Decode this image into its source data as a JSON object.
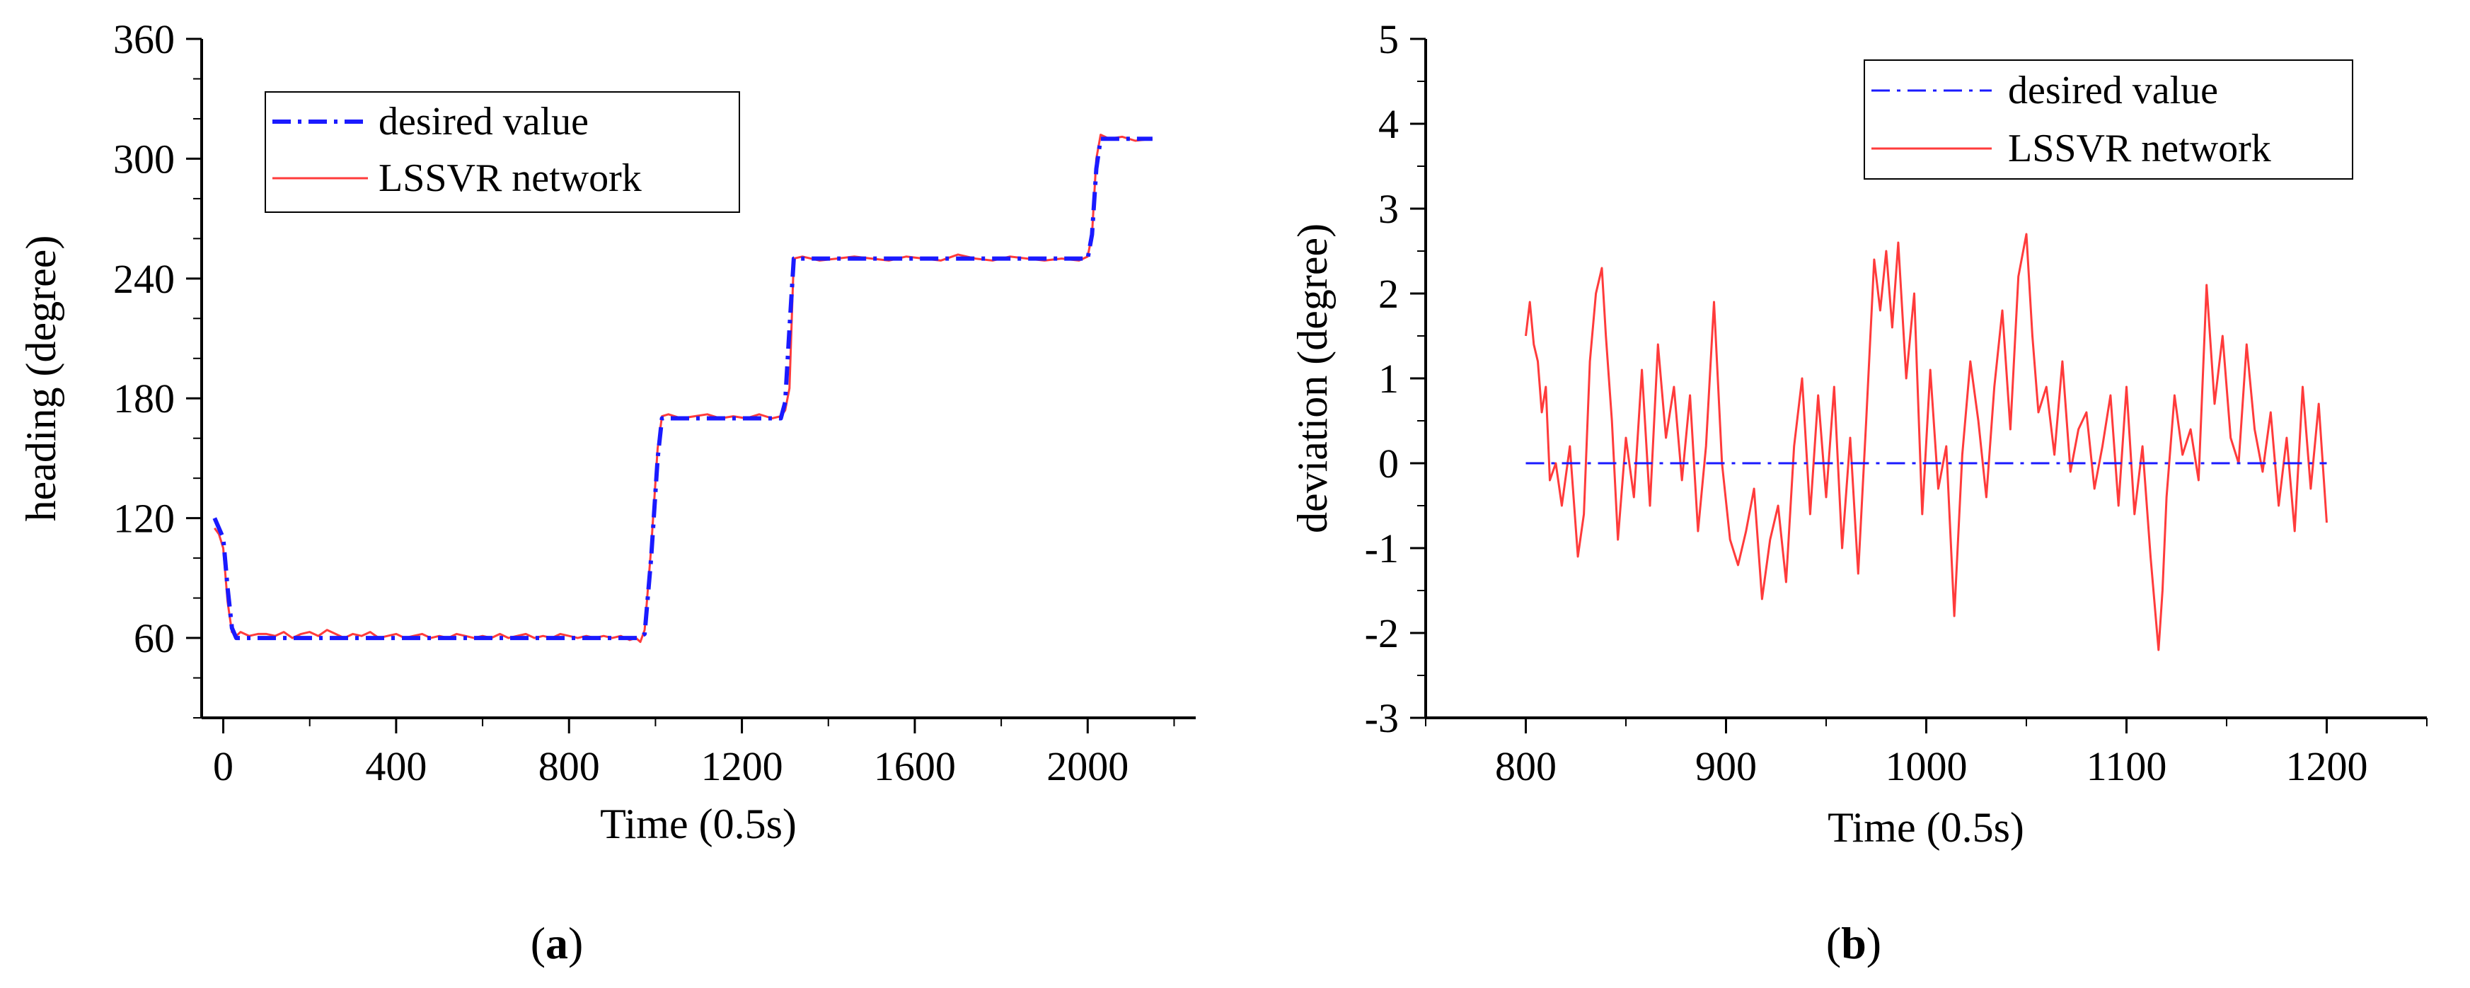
{
  "chart_data": [
    {
      "type": "line",
      "panel": "a",
      "xlabel": "Time (0.5s)",
      "ylabel": "heading (degree)",
      "xlim": [
        -50,
        2250
      ],
      "ylim": [
        20,
        360
      ],
      "xticks": [
        0,
        400,
        800,
        1200,
        1600,
        2000
      ],
      "yticks": [
        60,
        120,
        180,
        240,
        300,
        360
      ],
      "legend_position": "top-left",
      "series": [
        {
          "name": "desired value",
          "color": "#1a1aff",
          "style": "dash-dot",
          "x": [
            -20,
            0,
            10,
            20,
            30,
            960,
            975,
            990,
            1005,
            1015,
            1290,
            1300,
            1310,
            1320,
            2000,
            2010,
            2020,
            2030,
            2150
          ],
          "y": [
            120,
            110,
            85,
            65,
            60,
            60,
            62,
            100,
            150,
            170,
            170,
            178,
            215,
            250,
            250,
            262,
            295,
            310,
            310
          ]
        },
        {
          "name": "LSSVR network",
          "color": "#ff3b3b",
          "style": "solid",
          "x": [
            -20,
            -10,
            0,
            10,
            20,
            30,
            40,
            60,
            80,
            100,
            120,
            140,
            160,
            180,
            200,
            220,
            240,
            260,
            280,
            300,
            320,
            340,
            360,
            380,
            400,
            420,
            440,
            460,
            480,
            500,
            520,
            540,
            560,
            580,
            600,
            620,
            640,
            660,
            680,
            700,
            720,
            740,
            760,
            780,
            800,
            820,
            840,
            860,
            880,
            900,
            920,
            940,
            955,
            965,
            975,
            990,
            1005,
            1015,
            1030,
            1060,
            1090,
            1120,
            1150,
            1180,
            1210,
            1240,
            1270,
            1290,
            1300,
            1310,
            1320,
            1340,
            1380,
            1420,
            1460,
            1500,
            1540,
            1580,
            1620,
            1660,
            1700,
            1740,
            1780,
            1820,
            1860,
            1900,
            1940,
            1980,
            2000,
            2010,
            2020,
            2030,
            2050,
            2080,
            2110,
            2150
          ],
          "y": [
            115,
            112,
            105,
            78,
            63,
            61,
            63,
            61,
            62,
            62,
            61,
            63,
            60,
            62,
            63,
            61,
            64,
            62,
            60,
            62,
            61,
            63,
            60,
            61,
            62,
            60,
            61,
            62,
            60,
            61,
            60,
            62,
            61,
            60,
            61,
            60,
            62,
            60,
            61,
            62,
            60,
            61,
            60,
            62,
            61,
            60,
            61,
            60,
            61,
            60,
            61,
            59,
            60,
            58,
            64,
            105,
            155,
            171,
            172,
            170,
            171,
            172,
            170,
            171,
            170,
            172,
            170,
            171,
            174,
            185,
            250,
            251,
            249,
            250,
            251,
            250,
            249,
            251,
            250,
            249,
            252,
            250,
            249,
            251,
            250,
            249,
            250,
            249,
            251,
            262,
            300,
            312,
            310,
            311,
            309,
            310
          ]
        }
      ]
    },
    {
      "type": "line",
      "panel": "b",
      "xlabel": "Time (0.5s)",
      "ylabel": "deviation (degree)",
      "xlim": [
        750,
        1250
      ],
      "ylim": [
        -3,
        5
      ],
      "xticks": [
        800,
        900,
        1000,
        1100,
        1200
      ],
      "yticks": [
        -3,
        -2,
        -1,
        0,
        1,
        2,
        3,
        4,
        5
      ],
      "legend_position": "top-right",
      "series": [
        {
          "name": "desired value",
          "color": "#1a1aff",
          "style": "dash-dot",
          "x": [
            800,
            1200
          ],
          "y": [
            0,
            0
          ]
        },
        {
          "name": "LSSVR network",
          "color": "#ff3b3b",
          "style": "solid",
          "x": [
            800,
            802,
            804,
            806,
            808,
            810,
            812,
            815,
            818,
            822,
            826,
            829,
            832,
            835,
            838,
            840,
            843,
            846,
            850,
            854,
            858,
            862,
            866,
            870,
            874,
            878,
            882,
            886,
            890,
            894,
            898,
            902,
            906,
            910,
            914,
            918,
            922,
            926,
            930,
            934,
            938,
            942,
            946,
            950,
            954,
            958,
            962,
            966,
            970,
            974,
            977,
            980,
            983,
            986,
            990,
            994,
            998,
            1002,
            1006,
            1010,
            1014,
            1018,
            1022,
            1026,
            1030,
            1034,
            1038,
            1042,
            1046,
            1050,
            1053,
            1056,
            1060,
            1064,
            1068,
            1072,
            1076,
            1080,
            1084,
            1088,
            1092,
            1096,
            1100,
            1104,
            1108,
            1112,
            1116,
            1118,
            1120,
            1124,
            1128,
            1132,
            1136,
            1140,
            1144,
            1148,
            1152,
            1156,
            1160,
            1164,
            1168,
            1172,
            1176,
            1180,
            1184,
            1188,
            1192,
            1196,
            1200
          ],
          "y": [
            1.5,
            1.9,
            1.4,
            1.2,
            0.6,
            0.9,
            -0.2,
            0.0,
            -0.5,
            0.2,
            -1.1,
            -0.6,
            1.2,
            2.0,
            2.3,
            1.5,
            0.5,
            -0.9,
            0.3,
            -0.4,
            1.1,
            -0.5,
            1.4,
            0.3,
            0.9,
            -0.2,
            0.8,
            -0.8,
            0.2,
            1.9,
            0.0,
            -0.9,
            -1.2,
            -0.8,
            -0.3,
            -1.6,
            -0.9,
            -0.5,
            -1.4,
            0.2,
            1.0,
            -0.6,
            0.8,
            -0.4,
            0.9,
            -1.0,
            0.3,
            -1.3,
            0.5,
            2.4,
            1.8,
            2.5,
            1.6,
            2.6,
            1.0,
            2.0,
            -0.6,
            1.1,
            -0.3,
            0.2,
            -1.8,
            0.1,
            1.2,
            0.5,
            -0.4,
            0.9,
            1.8,
            0.4,
            2.2,
            2.7,
            1.5,
            0.6,
            0.9,
            0.1,
            1.2,
            -0.1,
            0.4,
            0.6,
            -0.3,
            0.2,
            0.8,
            -0.5,
            0.9,
            -0.6,
            0.2,
            -1.1,
            -2.2,
            -1.5,
            -0.4,
            0.8,
            0.1,
            0.4,
            -0.2,
            2.1,
            0.7,
            1.5,
            0.3,
            0.0,
            1.4,
            0.4,
            -0.1,
            0.6,
            -0.5,
            0.3,
            -0.8,
            0.9,
            -0.3,
            0.7,
            -0.7
          ]
        }
      ]
    }
  ],
  "panel_labels": [
    "(a)",
    "(b)"
  ]
}
